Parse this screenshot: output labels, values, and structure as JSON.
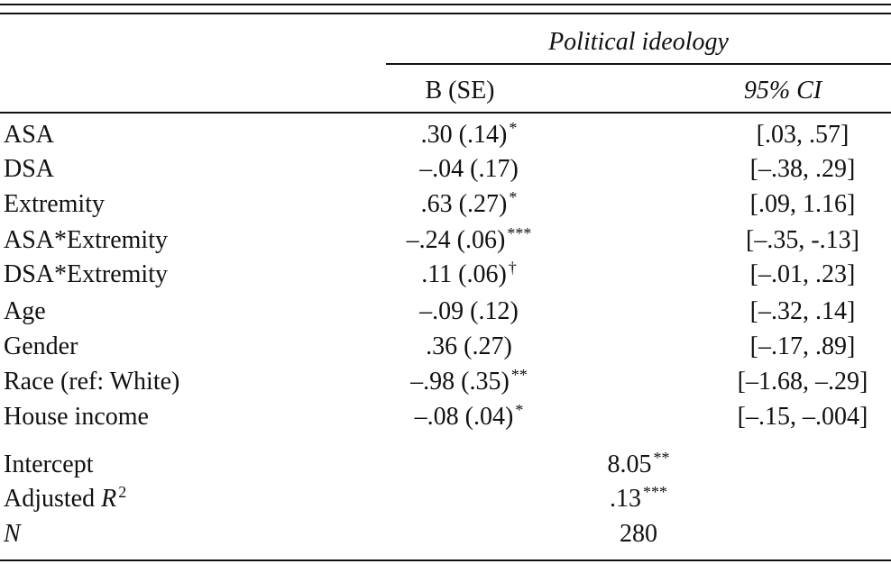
{
  "header": {
    "group": "Political ideology",
    "columns": [
      "B (SE)",
      "95% CI"
    ]
  },
  "table": {
    "rows": [
      {
        "label": "ASA",
        "b": ".30 (.14)",
        "sig": "*",
        "ci": "[.03, .57]"
      },
      {
        "label": "DSA",
        "b": "–.04 (.17)",
        "sig": null,
        "ci": "[–.38, .29]"
      },
      {
        "label": "Extremity",
        "b": ".63 (.27)",
        "sig": "*",
        "ci": "[.09, 1.16]"
      },
      {
        "label": "ASA*Extremity",
        "b": "–.24 (.06)",
        "sig": "***",
        "ci": "[–.35, -.13]"
      },
      {
        "label": "DSA*Extremity",
        "b": ".11 (.06)",
        "sig": "†",
        "ci": "[–.01, .23]"
      },
      {
        "label": "Age",
        "b": "–.09 (.12)",
        "sig": null,
        "ci": "[–.32, .14]"
      },
      {
        "label": "Gender",
        "b": ".36 (.27)",
        "sig": null,
        "ci": "[–.17, .89]"
      },
      {
        "label": "Race (ref: White)",
        "b": "–.98 (.35)",
        "sig": "**",
        "ci": "[–1.68, –.29]"
      },
      {
        "label": "House income",
        "b": "–.08 (.04)",
        "sig": "*",
        "ci": "[–.15, –.004]"
      }
    ]
  },
  "footer": {
    "rows": [
      {
        "label": "Intercept",
        "value": "8.05",
        "sig": "**"
      },
      {
        "label": "Adjusted ",
        "var": "R",
        "sup": "2",
        "value": ".13",
        "sig": "***"
      },
      {
        "var": "N",
        "value": "280"
      }
    ]
  }
}
